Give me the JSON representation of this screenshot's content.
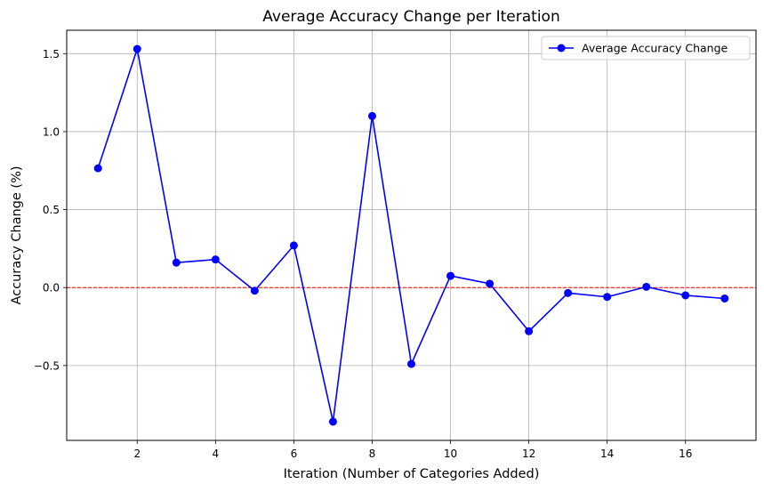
{
  "chart_data": {
    "type": "line",
    "title": "Average Accuracy Change per Iteration",
    "xlabel": "Iteration (Number of Categories Added)",
    "ylabel": "Accuracy Change (%)",
    "xlim": [
      0.2,
      17.8
    ],
    "ylim": [
      -0.98,
      1.65
    ],
    "x_ticks": [
      2,
      4,
      6,
      8,
      10,
      12,
      14,
      16
    ],
    "x_tick_labels": [
      "2",
      "4",
      "6",
      "8",
      "10",
      "12",
      "14",
      "16"
    ],
    "y_ticks": [
      -0.5,
      0.0,
      0.5,
      1.0,
      1.5
    ],
    "y_tick_labels": [
      "−0.5",
      "0.0",
      "0.5",
      "1.0",
      "1.5"
    ],
    "grid": true,
    "legend_position": "top-right",
    "reference_line": {
      "y": 0.0,
      "style": "dashed",
      "color": "#ff0000"
    },
    "series": [
      {
        "name": "Average Accuracy Change",
        "color": "#0000ff",
        "marker": "circle",
        "x": [
          1,
          2,
          3,
          4,
          5,
          6,
          7,
          8,
          9,
          10,
          11,
          12,
          13,
          14,
          15,
          16,
          17
        ],
        "y": [
          0.765,
          1.53,
          0.16,
          0.18,
          -0.02,
          0.27,
          -0.86,
          1.1,
          -0.49,
          0.075,
          0.025,
          -0.28,
          -0.035,
          -0.06,
          0.005,
          -0.05,
          -0.07
        ]
      }
    ]
  }
}
